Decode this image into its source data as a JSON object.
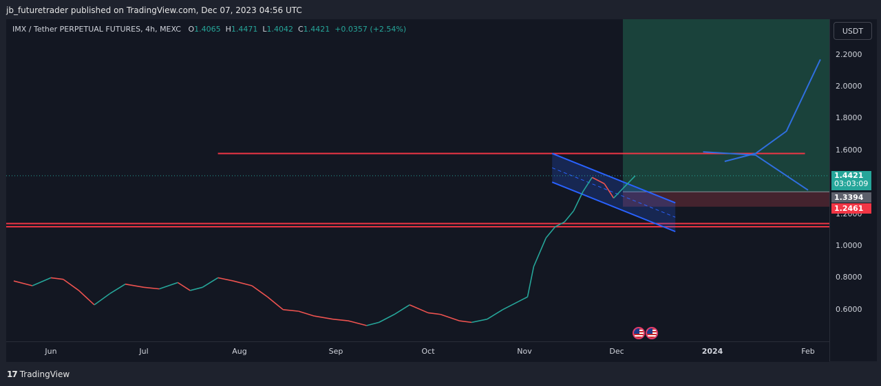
{
  "header": {
    "publisher_line": "jb_futuretrader published on TradingView.com, Dec 07, 2023 04:56 UTC"
  },
  "legend": {
    "symbol": "IMX / Tether PERPETUAL FUTURES, 4h, MEXC",
    "o_label": "O",
    "o_value": "1.4065",
    "h_label": "H",
    "h_value": "1.4471",
    "l_label": "L",
    "l_value": "1.4042",
    "c_label": "C",
    "c_value": "1.4421",
    "change": "+0.0357 (+2.54%)"
  },
  "currency_button": "USDT",
  "price_tags": {
    "last_price": "1.4421",
    "countdown": "03:03:09",
    "entry": "1.3394",
    "stop": "1.2461"
  },
  "footer": {
    "logo_text": "TradingView"
  },
  "colors": {
    "up": "#26a69a",
    "down": "#ef5350",
    "resistance": "#f23645",
    "channel": "#2962ff",
    "projection": "#2f6fe0",
    "target_zone": "#1c4a40",
    "stop_zone": "#4a2530"
  },
  "chart_data": {
    "type": "line",
    "ylim": [
      0.48,
      2.3
    ],
    "y_ticks": [
      "0.6000",
      "0.8000",
      "1.0000",
      "1.2000",
      "1.4000",
      "1.6000",
      "1.8000",
      "2.0000",
      "2.2000"
    ],
    "x_ticks": [
      "Jun",
      "Jul",
      "Aug",
      "Sep",
      "Oct",
      "Nov",
      "Dec",
      "2024",
      "Feb"
    ],
    "series": [
      {
        "x": [
          "2023-05-20",
          "2023-05-26",
          "2023-06-01",
          "2023-06-05",
          "2023-06-10",
          "2023-06-15",
          "2023-06-20",
          "2023-06-25",
          "2023-07-01",
          "2023-07-06",
          "2023-07-12",
          "2023-07-16",
          "2023-07-20",
          "2023-07-25",
          "2023-07-30",
          "2023-08-05",
          "2023-08-10",
          "2023-08-15",
          "2023-08-20",
          "2023-08-25",
          "2023-08-31",
          "2023-09-05",
          "2023-09-11",
          "2023-09-15",
          "2023-09-20",
          "2023-09-25",
          "2023-10-01",
          "2023-10-05",
          "2023-10-11",
          "2023-10-15",
          "2023-10-20",
          "2023-10-25",
          "2023-10-30",
          "2023-11-02",
          "2023-11-04",
          "2023-11-08",
          "2023-11-11",
          "2023-11-14",
          "2023-11-17",
          "2023-11-20",
          "2023-11-23",
          "2023-11-27",
          "2023-11-30",
          "2023-12-03",
          "2023-12-07"
        ],
        "values": [
          0.78,
          0.75,
          0.8,
          0.79,
          0.72,
          0.63,
          0.7,
          0.76,
          0.74,
          0.73,
          0.77,
          0.72,
          0.74,
          0.8,
          0.78,
          0.75,
          0.68,
          0.6,
          0.59,
          0.56,
          0.54,
          0.53,
          0.5,
          0.52,
          0.57,
          0.63,
          0.58,
          0.57,
          0.53,
          0.52,
          0.54,
          0.6,
          0.65,
          0.68,
          0.87,
          1.05,
          1.12,
          1.15,
          1.22,
          1.34,
          1.43,
          1.39,
          1.3,
          1.36,
          1.44
        ]
      }
    ],
    "annotations": {
      "resistance_upper": 1.58,
      "support_band": [
        1.12,
        1.14
      ],
      "long_position": {
        "entry": 1.3394,
        "stop": 1.2461,
        "target": 2.3
      },
      "descending_channel": {
        "start": [
          "2023-11-10",
          1.58
        ],
        "end": [
          "2023-12-20",
          1.27
        ],
        "width": 0.18
      },
      "projection_up": [
        [
          "2024-01-05",
          1.53
        ],
        [
          "2024-01-15",
          1.58
        ],
        [
          "2024-01-25",
          1.72
        ],
        [
          "2024-02-05",
          2.17
        ]
      ],
      "projection_down": [
        [
          "2023-12-29",
          1.59
        ],
        [
          "2024-01-15",
          1.57
        ],
        [
          "2024-02-01",
          1.35
        ]
      ]
    }
  }
}
